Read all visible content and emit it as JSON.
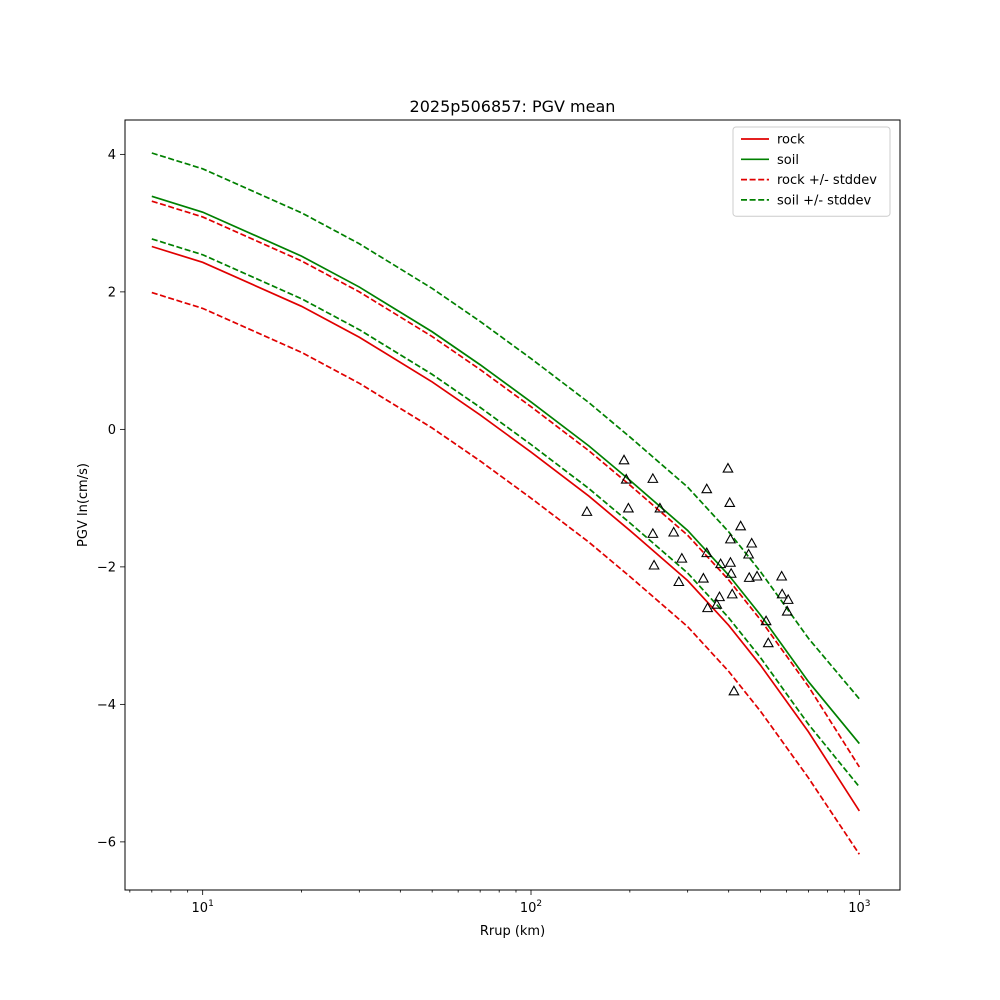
{
  "chart_data": {
    "type": "line",
    "title": "2025p506857: PGV mean",
    "xlabel": "Rrup (km)",
    "ylabel": "PGV ln(cm/s)",
    "xscale": "log",
    "xlim": [
      5.8,
      1330
    ],
    "ylim": [
      -6.7,
      4.5
    ],
    "xticks": [
      {
        "value": 10,
        "base": "10",
        "exp": "1"
      },
      {
        "value": 100,
        "base": "10",
        "exp": "2"
      },
      {
        "value": 1000,
        "base": "10",
        "exp": "3"
      }
    ],
    "yticks": [
      {
        "value": -6,
        "label": "−6"
      },
      {
        "value": -4,
        "label": "−4"
      },
      {
        "value": -2,
        "label": "−2"
      },
      {
        "value": 0,
        "label": "0"
      },
      {
        "value": 2,
        "label": "2"
      },
      {
        "value": 4,
        "label": "4"
      }
    ],
    "grid": false,
    "legend_position": "top-right",
    "series": [
      {
        "name": "rock",
        "color": "#e00000",
        "style": "solid",
        "x": [
          7,
          10,
          20,
          30,
          50,
          70,
          100,
          150,
          200,
          300,
          400,
          500,
          700,
          1000
        ],
        "y": [
          2.66,
          2.43,
          1.79,
          1.34,
          0.69,
          0.21,
          -0.33,
          -0.97,
          -1.47,
          -2.2,
          -2.85,
          -3.43,
          -4.4,
          -5.55
        ]
      },
      {
        "name": "soil",
        "color": "#008000",
        "style": "solid",
        "x": [
          7,
          10,
          20,
          30,
          50,
          70,
          100,
          150,
          200,
          300,
          400,
          500,
          700,
          1000
        ],
        "y": [
          3.39,
          3.16,
          2.52,
          2.07,
          1.42,
          0.94,
          0.4,
          -0.24,
          -0.74,
          -1.47,
          -2.12,
          -2.7,
          -3.67,
          -4.57
        ]
      },
      {
        "name": "rock +/- stddev",
        "color": "#e00000",
        "style": "dashed",
        "x": [
          7,
          10,
          20,
          30,
          50,
          70,
          100,
          150,
          200,
          300,
          400,
          500,
          700,
          1000
        ],
        "y": [
          3.32,
          3.09,
          2.45,
          2.0,
          1.35,
          0.87,
          0.33,
          -0.31,
          -0.81,
          -1.54,
          -2.19,
          -2.77,
          -3.74,
          -4.91
        ]
      },
      {
        "name": "",
        "color": "#e00000",
        "style": "dashed",
        "x": [
          7,
          10,
          20,
          30,
          50,
          70,
          100,
          150,
          200,
          300,
          400,
          500,
          700,
          1000
        ],
        "y": [
          1.99,
          1.76,
          1.12,
          0.67,
          0.02,
          -0.46,
          -1.0,
          -1.64,
          -2.14,
          -2.87,
          -3.52,
          -4.1,
          -5.07,
          -6.18
        ]
      },
      {
        "name": "soil +/- stddev",
        "color": "#008000",
        "style": "dashed",
        "x": [
          7,
          10,
          20,
          30,
          50,
          70,
          100,
          150,
          200,
          300,
          400,
          500,
          700,
          1000
        ],
        "y": [
          4.02,
          3.79,
          3.15,
          2.7,
          2.05,
          1.57,
          1.03,
          0.39,
          -0.11,
          -0.84,
          -1.49,
          -2.07,
          -3.04,
          -3.92
        ]
      },
      {
        "name": "",
        "color": "#008000",
        "style": "dashed",
        "x": [
          7,
          10,
          20,
          30,
          50,
          70,
          100,
          150,
          200,
          300,
          400,
          500,
          700,
          1000
        ],
        "y": [
          2.77,
          2.54,
          1.9,
          1.45,
          0.8,
          0.32,
          -0.22,
          -0.86,
          -1.36,
          -2.09,
          -2.74,
          -3.32,
          -4.29,
          -5.2
        ]
      }
    ],
    "observations": {
      "marker": "triangle",
      "points": [
        {
          "x": 148,
          "y": -1.2
        },
        {
          "x": 192,
          "y": -0.45
        },
        {
          "x": 195,
          "y": -0.73
        },
        {
          "x": 198,
          "y": -1.15
        },
        {
          "x": 235,
          "y": -0.72
        },
        {
          "x": 235,
          "y": -1.52
        },
        {
          "x": 237,
          "y": -1.98
        },
        {
          "x": 247,
          "y": -1.15
        },
        {
          "x": 272,
          "y": -1.5
        },
        {
          "x": 282,
          "y": -2.22
        },
        {
          "x": 288,
          "y": -1.88
        },
        {
          "x": 335,
          "y": -2.17
        },
        {
          "x": 343,
          "y": -0.87
        },
        {
          "x": 343,
          "y": -1.8
        },
        {
          "x": 345,
          "y": -2.6
        },
        {
          "x": 368,
          "y": -2.55
        },
        {
          "x": 375,
          "y": -2.44
        },
        {
          "x": 378,
          "y": -1.96
        },
        {
          "x": 398,
          "y": -0.57
        },
        {
          "x": 403,
          "y": -1.07
        },
        {
          "x": 405,
          "y": -1.6
        },
        {
          "x": 405,
          "y": -1.94
        },
        {
          "x": 407,
          "y": -2.1
        },
        {
          "x": 410,
          "y": -2.4
        },
        {
          "x": 415,
          "y": -3.81
        },
        {
          "x": 435,
          "y": -1.41
        },
        {
          "x": 460,
          "y": -1.82
        },
        {
          "x": 462,
          "y": -2.16
        },
        {
          "x": 470,
          "y": -1.66
        },
        {
          "x": 488,
          "y": -2.14
        },
        {
          "x": 520,
          "y": -2.79
        },
        {
          "x": 528,
          "y": -3.11
        },
        {
          "x": 580,
          "y": -2.14
        },
        {
          "x": 582,
          "y": -2.4
        },
        {
          "x": 603,
          "y": -2.65
        },
        {
          "x": 607,
          "y": -2.48
        }
      ]
    }
  }
}
